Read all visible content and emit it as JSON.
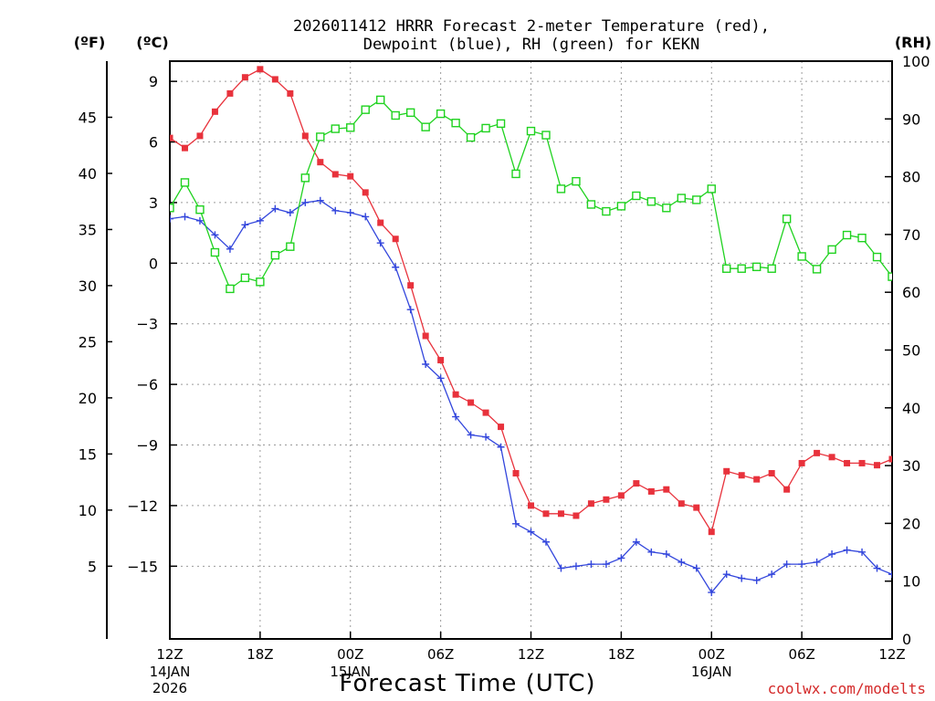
{
  "chart_data": {
    "type": "line",
    "title_line1": "2026011412 HRRR Forecast 2-meter Temperature (red),",
    "title_line2": "Dewpoint (blue), RH (green) for KEKN",
    "xlabel": "Forecast Time (UTC)",
    "credit": "coolwx.com/modelts",
    "left_outer_unit": "(ºF)",
    "left_inner_unit": "(ºC)",
    "right_unit": "(RH)",
    "x_range": [
      0,
      48
    ],
    "x_ticks": [
      {
        "hour": 0,
        "label": "12Z",
        "date1": "14JAN",
        "date2": "2026"
      },
      {
        "hour": 6,
        "label": "18Z"
      },
      {
        "hour": 12,
        "label": "00Z",
        "date1": "15JAN"
      },
      {
        "hour": 18,
        "label": "06Z"
      },
      {
        "hour": 24,
        "label": "12Z"
      },
      {
        "hour": 30,
        "label": "18Z"
      },
      {
        "hour": 36,
        "label": "00Z",
        "date1": "16JAN"
      },
      {
        "hour": 42,
        "label": "06Z"
      },
      {
        "hour": 48,
        "label": "12Z"
      }
    ],
    "celsius_range": [
      -18.6,
      10
    ],
    "celsius_ticks": [
      "9",
      "6",
      "3",
      "0",
      "−3",
      "−6",
      "−9",
      "−12",
      "−15"
    ],
    "fahrenheit_ticks": [
      "45",
      "40",
      "35",
      "30",
      "25",
      "20",
      "15",
      "10",
      "5"
    ],
    "rh_range": [
      0,
      100
    ],
    "rh_ticks": [
      "100",
      "90",
      "80",
      "70",
      "60",
      "50",
      "40",
      "30",
      "20",
      "10",
      "0"
    ],
    "series": [
      {
        "name": "Temperature",
        "color": "#e8323c",
        "marker": "filled-square",
        "values": [
          6.2,
          5.7,
          6.3,
          7.5,
          8.4,
          9.2,
          9.6,
          9.1,
          8.4,
          6.3,
          5.0,
          4.4,
          4.3,
          3.5,
          2.0,
          1.2,
          -1.1,
          -3.6,
          -4.8,
          -6.5,
          -6.9,
          -7.4,
          -8.1,
          -10.4,
          -12.0,
          -12.4,
          -12.4,
          -12.5,
          -11.9,
          -11.7,
          -11.5,
          -10.9,
          -11.3,
          -11.2,
          -11.9,
          -12.1,
          -13.3,
          -10.3,
          -10.5,
          -10.7,
          -10.4,
          -11.2,
          -9.9,
          -9.4,
          -9.6,
          -9.9,
          -9.9,
          -10.0,
          -9.7
        ],
        "bind": "temperature"
      },
      {
        "name": "Dewpoint",
        "color": "#3346dc",
        "marker": "plus",
        "values": [
          2.2,
          2.3,
          2.1,
          1.4,
          0.7,
          1.9,
          2.1,
          2.7,
          2.5,
          3.0,
          3.1,
          2.6,
          2.5,
          2.3,
          1.0,
          -0.2,
          -2.3,
          -5.0,
          -5.7,
          -7.6,
          -8.5,
          -8.6,
          -9.1,
          -12.9,
          -13.3,
          -13.8,
          -15.1,
          -15.0,
          -14.9,
          -14.9,
          -14.6,
          -13.8,
          -14.3,
          -14.4,
          -14.8,
          -15.1,
          -16.3,
          -15.4,
          -15.6,
          -15.7,
          -15.4,
          -14.9,
          -14.9,
          -14.8,
          -14.4,
          -14.2,
          -14.3,
          -15.1,
          -15.4
        ],
        "bind": "dewpoint"
      },
      {
        "name": "RH",
        "color": "#1fd21f",
        "marker": "open-square",
        "values": [
          74.6,
          79.0,
          74.3,
          66.9,
          60.6,
          62.5,
          61.8,
          66.4,
          67.9,
          79.8,
          86.9,
          88.3,
          88.5,
          91.6,
          93.3,
          90.6,
          91.1,
          88.6,
          90.9,
          89.3,
          86.8,
          88.4,
          89.2,
          80.5,
          87.9,
          87.2,
          77.9,
          79.2,
          75.2,
          74.0,
          74.9,
          76.7,
          75.7,
          74.6,
          76.3,
          76.0,
          77.9,
          64.1,
          64.1,
          64.4,
          64.1,
          72.7,
          66.2,
          64.0,
          67.4,
          69.9,
          69.4,
          66.1,
          62.7
        ],
        "bind": "rh"
      }
    ]
  }
}
